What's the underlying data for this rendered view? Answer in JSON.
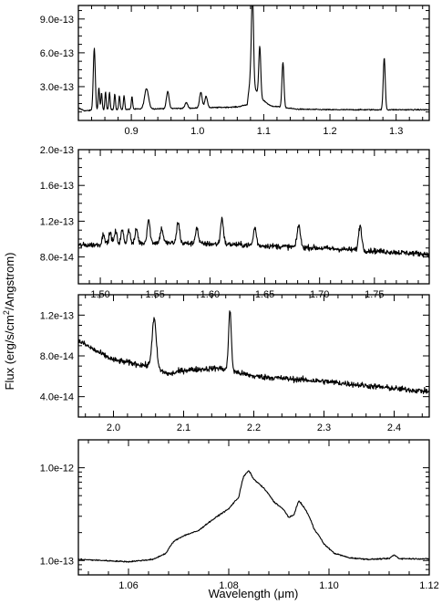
{
  "figure": {
    "ylabel": "Flux (erg/s/cm²/Angstrom)",
    "ylabel_parts": {
      "base": "Flux (erg/s/cm",
      "sup": "2",
      "tail": "/Angstrom)"
    },
    "xlabel": "Wavelength (μm)"
  },
  "chart_data": [
    {
      "type": "line",
      "xlim": [
        0.82,
        1.35
      ],
      "ylim": [
        0.0,
        1.02e-12
      ],
      "yscale": "linear",
      "x_ticks": [
        0.9,
        1.0,
        1.1,
        1.2,
        1.3
      ],
      "x_tick_labels": [
        "0.9",
        "1.0",
        "1.1",
        "1.2",
        "1.3"
      ],
      "y_ticks": [
        3e-13,
        6e-13,
        9e-13
      ],
      "y_tick_labels": [
        "3.0e-13",
        "6.0e-13",
        "9.0e-13"
      ],
      "continuum": [
        [
          0.82,
          1.1e-13
        ],
        [
          0.83,
          8.5e-14
        ],
        [
          0.84,
          9e-14
        ],
        [
          0.9,
          1e-13
        ],
        [
          1.0,
          1.1e-13
        ],
        [
          1.06,
          1.2e-13
        ],
        [
          1.075,
          1.4e-13
        ],
        [
          1.08,
          4e-13
        ],
        [
          1.085,
          3e-13
        ],
        [
          1.095,
          2e-13
        ],
        [
          1.11,
          1.3e-13
        ],
        [
          1.15,
          1e-13
        ],
        [
          1.2,
          9.5e-14
        ],
        [
          1.35,
          9.5e-14
        ]
      ],
      "lines": [
        [
          0.844,
          5.5e-13,
          0.0015
        ],
        [
          0.851,
          2e-13,
          0.001
        ],
        [
          0.855,
          1.5e-13,
          0.001
        ],
        [
          0.861,
          1.6e-13,
          0.001
        ],
        [
          0.867,
          1.5e-13,
          0.001
        ],
        [
          0.875,
          1.4e-13,
          0.001
        ],
        [
          0.882,
          1.2e-13,
          0.001
        ],
        [
          0.889,
          1.2e-13,
          0.001
        ],
        [
          0.901,
          1.1e-13,
          0.001
        ],
        [
          0.923,
          1.8e-13,
          0.003
        ],
        [
          0.955,
          1.5e-13,
          0.002
        ],
        [
          0.983,
          5e-14,
          0.002
        ],
        [
          1.005,
          1.4e-13,
          0.002
        ],
        [
          1.013,
          1e-13,
          0.002
        ],
        [
          1.083,
          8.5e-13,
          0.0015
        ],
        [
          1.094,
          4.5e-13,
          0.0015
        ],
        [
          1.129,
          4e-13,
          0.0015
        ],
        [
          1.282,
          4.6e-13,
          0.0015
        ]
      ],
      "noise": 5e-15
    },
    {
      "type": "line",
      "xlim": [
        1.48,
        1.8
      ],
      "ylim": [
        5e-14,
        2e-13
      ],
      "yscale": "linear",
      "x_ticks": [
        1.5,
        1.55,
        1.6,
        1.65,
        1.7,
        1.75
      ],
      "x_tick_labels": [
        "1.50",
        "1.55",
        "1.60",
        "1.65",
        "1.70",
        "1.75"
      ],
      "y_ticks": [
        8e-14,
        1.2e-13,
        1.6e-13,
        2e-13
      ],
      "y_tick_labels": [
        "8.0e-14",
        "1.2e-13",
        "1.6e-13",
        "2.0e-13"
      ],
      "continuum": [
        [
          1.48,
          9.3e-14
        ],
        [
          1.55,
          9.6e-14
        ],
        [
          1.62,
          9.4e-14
        ],
        [
          1.7,
          9e-14
        ],
        [
          1.76,
          8.6e-14
        ],
        [
          1.8,
          8.3e-14
        ]
      ],
      "lines": [
        [
          1.503,
          1.2e-14,
          0.0012
        ],
        [
          1.509,
          1.3e-14,
          0.0012
        ],
        [
          1.514,
          1.4e-14,
          0.0012
        ],
        [
          1.52,
          1.5e-14,
          0.0012
        ],
        [
          1.526,
          1.6e-14,
          0.0012
        ],
        [
          1.533,
          1.6e-14,
          0.0012
        ],
        [
          1.544,
          2.6e-14,
          0.0013
        ],
        [
          1.556,
          1.6e-14,
          0.0013
        ],
        [
          1.571,
          2.4e-14,
          0.0013
        ],
        [
          1.588,
          1.8e-14,
          0.0013
        ],
        [
          1.611,
          2.9e-14,
          0.0013
        ],
        [
          1.641,
          2e-14,
          0.0013
        ],
        [
          1.681,
          2.5e-14,
          0.0014
        ],
        [
          1.737,
          2.8e-14,
          0.0014
        ]
      ],
      "noise": 3e-15
    },
    {
      "type": "line",
      "xlim": [
        1.95,
        2.45
      ],
      "ylim": [
        2e-14,
        1.4e-13
      ],
      "yscale": "linear",
      "x_ticks": [
        2.0,
        2.1,
        2.2,
        2.3,
        2.4
      ],
      "x_tick_labels": [
        "2.0",
        "2.1",
        "2.2",
        "2.3",
        "2.4"
      ],
      "y_ticks": [
        4e-14,
        8e-14,
        1.2e-13
      ],
      "y_tick_labels": [
        "4.0e-14",
        "8.0e-14",
        "1.2e-13"
      ],
      "continuum": [
        [
          1.95,
          9.5e-14
        ],
        [
          1.98,
          8.3e-14
        ],
        [
          2.0,
          7.6e-14
        ],
        [
          2.05,
          7e-14
        ],
        [
          2.08,
          6.2e-14
        ],
        [
          2.1,
          6.6e-14
        ],
        [
          2.15,
          6.8e-14
        ],
        [
          2.2,
          6e-14
        ],
        [
          2.3,
          5.5e-14
        ],
        [
          2.4,
          4.8e-14
        ],
        [
          2.45,
          4.5e-14
        ]
      ],
      "lines": [
        [
          2.058,
          4.8e-14,
          0.003
        ],
        [
          2.166,
          5.8e-14,
          0.002
        ]
      ],
      "noise": 2.8e-15
    },
    {
      "type": "line",
      "xlim": [
        1.05,
        1.12
      ],
      "ylim": [
        7e-14,
        2e-12
      ],
      "yscale": "log",
      "x_ticks": [
        1.06,
        1.08,
        1.1,
        1.12
      ],
      "x_tick_labels": [
        "1.06",
        "1.08",
        "1.10",
        "1.12"
      ],
      "y_ticks": [
        1e-13,
        1e-12
      ],
      "y_tick_labels": [
        "1.0e-13",
        "1.0e-12"
      ],
      "profile": [
        [
          1.05,
          1.03e-13
        ],
        [
          1.055,
          1e-13
        ],
        [
          1.06,
          9.7e-14
        ],
        [
          1.065,
          1.03e-13
        ],
        [
          1.0675,
          1.2e-13
        ],
        [
          1.069,
          1.6e-13
        ],
        [
          1.071,
          1.85e-13
        ],
        [
          1.074,
          2.1e-13
        ],
        [
          1.077,
          2.8e-13
        ],
        [
          1.08,
          3.6e-13
        ],
        [
          1.082,
          4.8e-13
        ],
        [
          1.083,
          8.1e-13
        ],
        [
          1.084,
          9.3e-13
        ],
        [
          1.085,
          7.5e-13
        ],
        [
          1.087,
          6e-13
        ],
        [
          1.089,
          4.3e-13
        ],
        [
          1.091,
          3.5e-13
        ],
        [
          1.092,
          2.9e-13
        ],
        [
          1.093,
          3.1e-13
        ],
        [
          1.094,
          4.4e-13
        ],
        [
          1.0955,
          3.4e-13
        ],
        [
          1.097,
          2.2e-13
        ],
        [
          1.099,
          1.5e-13
        ],
        [
          1.101,
          1.2e-13
        ],
        [
          1.104,
          1.07e-13
        ],
        [
          1.108,
          1.03e-13
        ],
        [
          1.112,
          1.05e-13
        ],
        [
          1.113,
          1.15e-13
        ],
        [
          1.114,
          1.05e-13
        ],
        [
          1.12,
          1.04e-13
        ]
      ],
      "noise": 0.015
    }
  ]
}
